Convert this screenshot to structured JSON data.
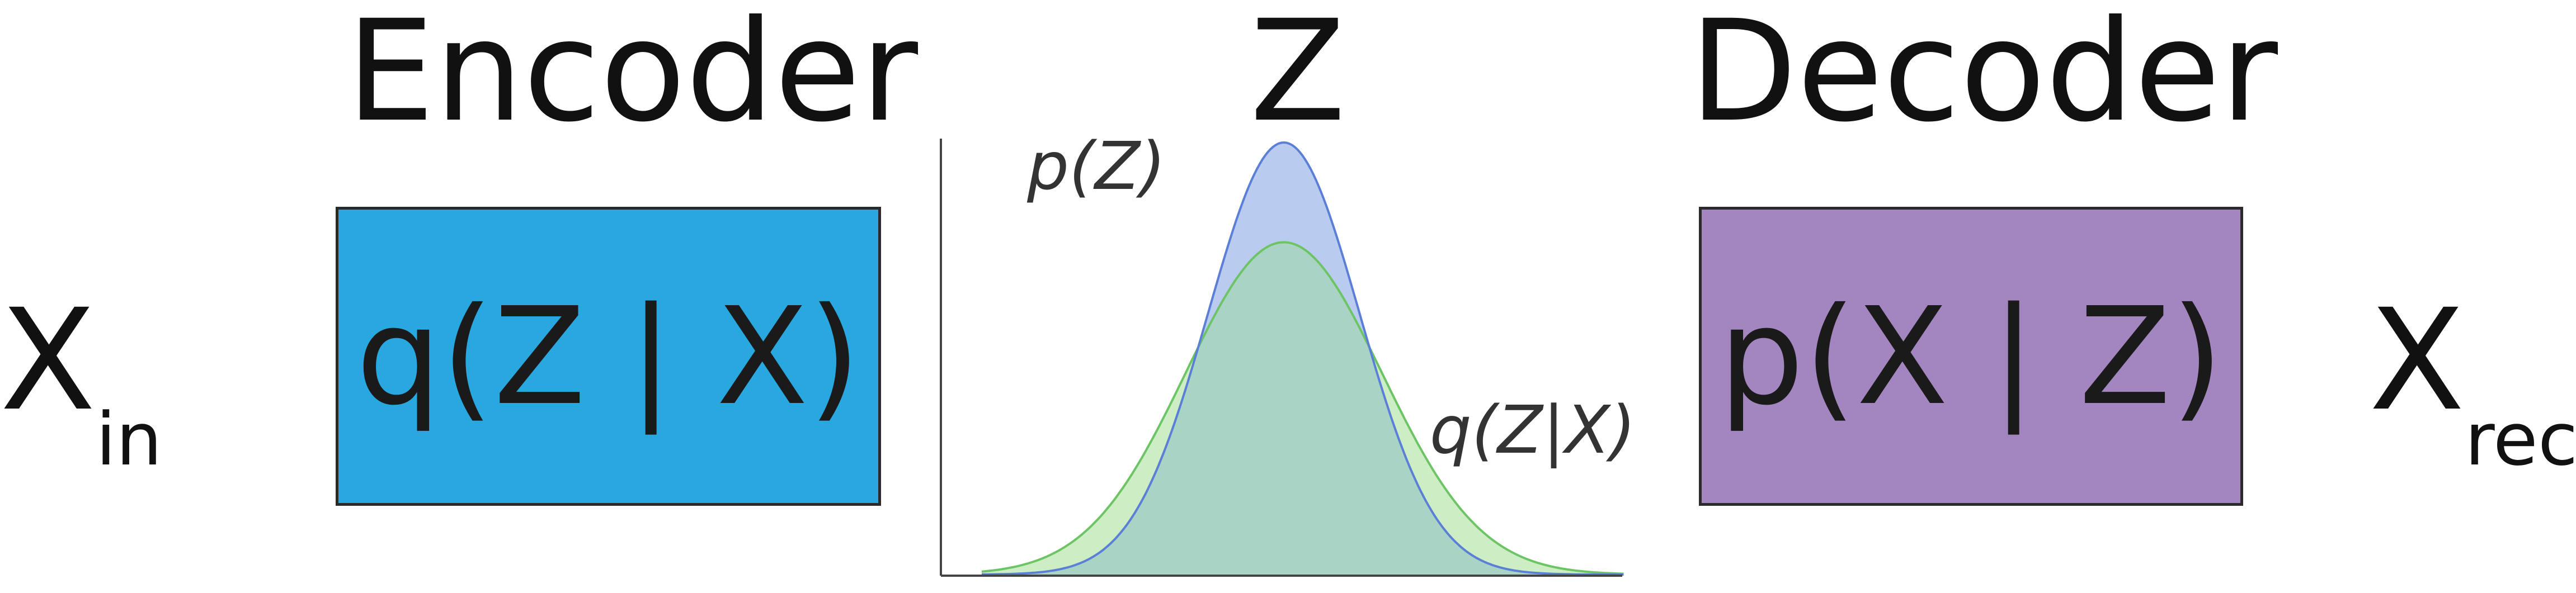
{
  "encoder": {
    "heading": "Encoder",
    "box_label": "q(Z | X)",
    "box_color": "#29a8e0"
  },
  "latent": {
    "heading": "Z"
  },
  "decoder": {
    "heading": "Decoder",
    "box_label": "p(X | Z)",
    "box_color": "#a386bf"
  },
  "input": {
    "symbol": "X",
    "subscript": "in"
  },
  "output": {
    "symbol": "X",
    "subscript": "rec"
  },
  "distributions": {
    "prior": {
      "label": "p(Z)",
      "mean": 0,
      "sd": 1,
      "stroke": "#5b7fd6",
      "fill": "#b9cbef"
    },
    "posterior": {
      "label": "q(Z|X)",
      "mean": 0,
      "sd": 1.3,
      "stroke": "#6cc464",
      "fill": "#cdeec5"
    },
    "overlap_fill": "#a9d3c4",
    "axis_color": "#444444"
  }
}
